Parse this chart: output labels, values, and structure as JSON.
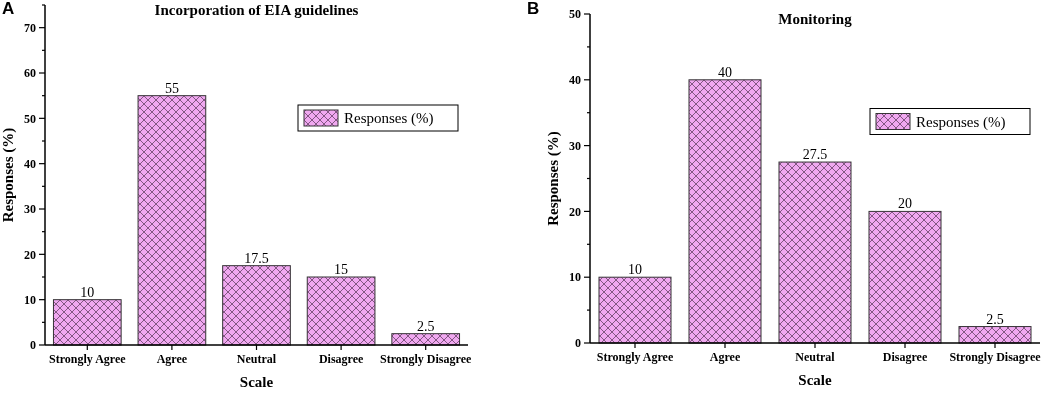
{
  "chart_data": [
    {
      "type": "bar",
      "title": "Incorporation of EIA guidelines",
      "xlabel": "Scale",
      "ylabel": "Responses (%)",
      "annotations": [
        "A"
      ],
      "categories": [
        "Strongly Agree",
        "Agree",
        "Neutral",
        "Disagree",
        "Strongly Disagree"
      ],
      "series": [
        {
          "name": "Responses (%)",
          "color": "#f0a8f0",
          "values": [
            10,
            55,
            17.5,
            15,
            2.5
          ]
        }
      ],
      "ylim": [
        0,
        75
      ],
      "yticks": [
        0,
        {
          "value": 5,
          "label": null
        },
        10,
        {
          "value": 15,
          "label": null
        },
        20,
        {
          "value": 25,
          "label": null
        },
        30,
        {
          "value": 35,
          "label": null
        },
        40,
        {
          "value": 45,
          "label": null
        },
        50,
        {
          "value": 55,
          "label": null
        },
        60,
        {
          "value": 65,
          "label": null
        },
        70,
        {
          "value": 75,
          "label": null
        }
      ],
      "data_labels": true,
      "legend": "right",
      "grid": false
    },
    {
      "type": "bar",
      "title": "Monitoring",
      "xlabel": "Scale",
      "ylabel": "Responses (%)",
      "annotations": [
        "B"
      ],
      "categories": [
        "Strongly Agree",
        "Agree",
        "Neutral",
        "Disagree",
        "Strongly Disagree"
      ],
      "series": [
        {
          "name": "Responses (%)",
          "color": "#f0a8f0",
          "values": [
            10,
            40,
            27.5,
            20,
            2.5
          ]
        }
      ],
      "ylim": [
        0,
        50
      ],
      "yticks": [
        0,
        {
          "value": 5,
          "label": null
        },
        10,
        {
          "value": 15,
          "label": null
        },
        20,
        {
          "value": 25,
          "label": null
        },
        30,
        {
          "value": 35,
          "label": null
        },
        40,
        {
          "value": 45,
          "label": null
        },
        50
      ],
      "data_labels": true,
      "legend": "right",
      "grid": false
    }
  ]
}
